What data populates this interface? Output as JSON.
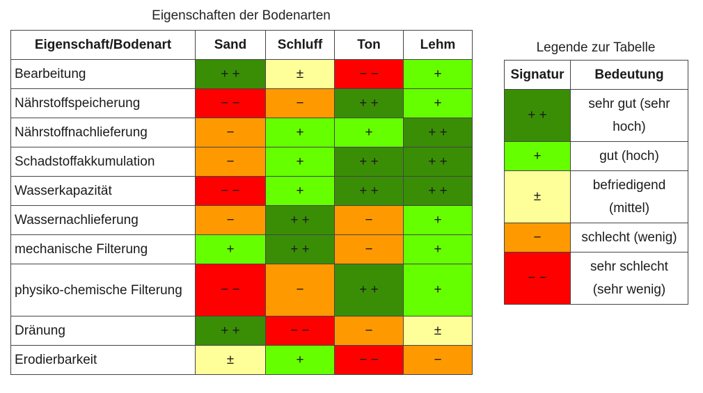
{
  "main_title": "Eigenschaften der Bodenarten",
  "legend_title": "Legende zur Tabelle",
  "columns": [
    "Eigenschaft/Bodenart",
    "Sand",
    "Schluff",
    "Ton",
    "Lehm"
  ],
  "rows": [
    {
      "property": "Bearbeitung",
      "values": [
        "+ +",
        "±",
        "− −",
        "+"
      ]
    },
    {
      "property": "Nährstoffspeicherung",
      "values": [
        "− −",
        "−",
        "+ +",
        "+"
      ]
    },
    {
      "property": "Nährstoffnachlieferung",
      "values": [
        "−",
        "+",
        "+",
        "+ +"
      ]
    },
    {
      "property": "Schadstoffakkumulation",
      "values": [
        "−",
        "+",
        "+ +",
        "+ +"
      ]
    },
    {
      "property": "Wasserkapazität",
      "values": [
        "− −",
        "+",
        "+ +",
        "+ +"
      ]
    },
    {
      "property": "Wassernachlieferung",
      "values": [
        "−",
        "+ +",
        "−",
        "+"
      ]
    },
    {
      "property": "mechanische Filterung",
      "values": [
        "+",
        "+ +",
        "−",
        "+"
      ]
    },
    {
      "property": "physiko-chemische Filterung",
      "values": [
        "− −",
        "−",
        "+ +",
        "+"
      ]
    },
    {
      "property": "Dränung",
      "values": [
        "+ +",
        "− −",
        "−",
        "±"
      ]
    },
    {
      "property": "Erodierbarkeit",
      "values": [
        "±",
        "+",
        "− −",
        "−"
      ]
    }
  ],
  "legend_columns": [
    "Signatur",
    "Bedeutung"
  ],
  "legend": [
    {
      "symbol": "+ +",
      "meaning": "sehr gut (sehr hoch)",
      "color": "#3a8e06"
    },
    {
      "symbol": "+",
      "meaning": "gut (hoch)",
      "color": "#66ff00"
    },
    {
      "symbol": "±",
      "meaning": "befriedigend (mittel)",
      "color": "#ffff99"
    },
    {
      "symbol": "−",
      "meaning": "schlecht (wenig)",
      "color": "#ff9900"
    },
    {
      "symbol": "− −",
      "meaning": "sehr schlecht (sehr wenig)",
      "color": "#ff0000"
    }
  ]
}
